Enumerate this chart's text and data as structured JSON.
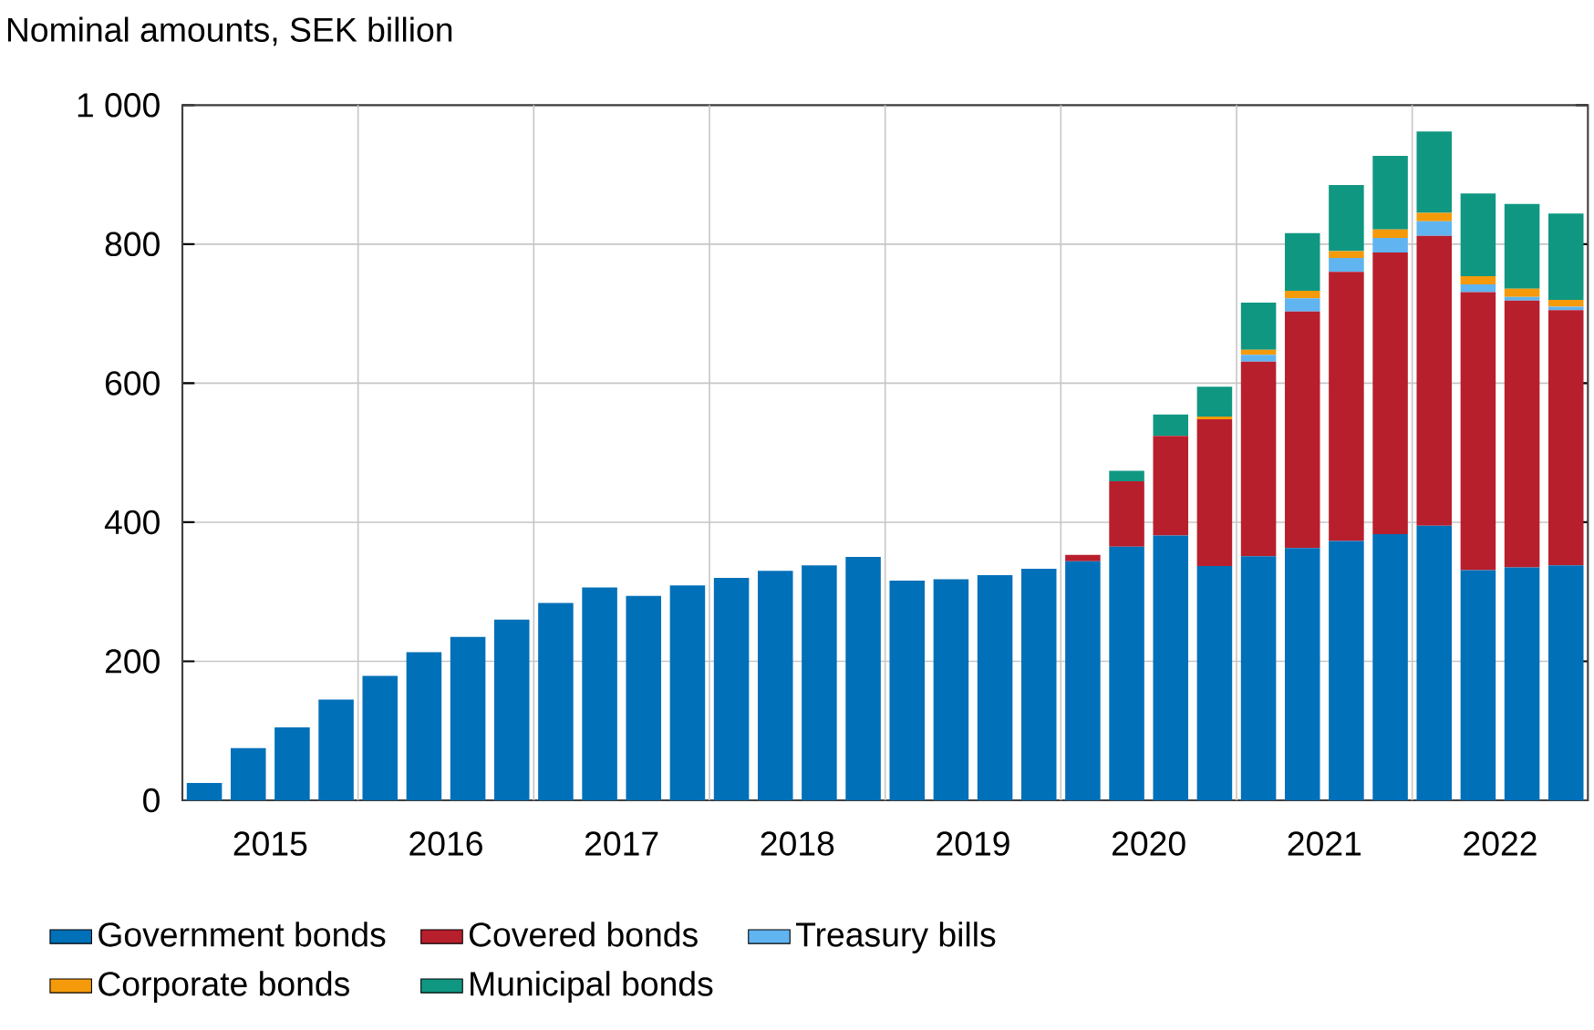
{
  "chart_data": {
    "type": "bar",
    "stacked": true,
    "title": "Nominal amounts, SEK billion",
    "x": [
      2015.125,
      2015.375,
      2015.625,
      2015.875,
      2016.125,
      2016.375,
      2016.625,
      2016.875,
      2017.125,
      2017.375,
      2017.625,
      2017.875,
      2018.125,
      2018.375,
      2018.625,
      2018.875,
      2019.125,
      2019.375,
      2019.625,
      2019.875,
      2020.125,
      2020.375,
      2020.625,
      2020.875,
      2021.125,
      2021.375,
      2021.625,
      2021.875,
      2022.125,
      2022.375,
      2022.625,
      2022.875
    ],
    "series": [
      {
        "name": "Government bonds",
        "color": "#0070b8",
        "values": [
          25,
          75,
          105,
          145,
          179,
          213,
          235,
          260,
          284,
          306,
          294,
          309,
          320,
          330,
          338,
          350,
          316,
          318,
          324,
          333,
          344,
          365,
          381,
          337,
          351,
          363,
          373,
          383,
          395,
          331,
          335,
          338
        ]
      },
      {
        "name": "Covered bonds",
        "color": "#b81f2d",
        "values": [
          null,
          null,
          null,
          null,
          null,
          null,
          null,
          null,
          null,
          null,
          null,
          null,
          null,
          null,
          null,
          null,
          null,
          null,
          null,
          null,
          9,
          94,
          143,
          211,
          280,
          340,
          387,
          405,
          417,
          400,
          384,
          367
        ]
      },
      {
        "name": "Treasury bills",
        "color": "#60b4f0",
        "values": [
          null,
          null,
          null,
          null,
          null,
          null,
          null,
          null,
          null,
          null,
          null,
          null,
          null,
          null,
          null,
          null,
          null,
          null,
          null,
          null,
          null,
          null,
          null,
          null,
          10,
          19,
          20,
          21,
          21,
          11,
          5,
          5
        ]
      },
      {
        "name": "Corporate bonds",
        "color": "#f59a0a",
        "values": [
          null,
          null,
          null,
          null,
          null,
          null,
          null,
          null,
          null,
          null,
          null,
          null,
          null,
          null,
          null,
          null,
          null,
          null,
          null,
          null,
          null,
          null,
          null,
          4,
          7,
          11,
          10,
          12,
          12,
          12,
          12,
          10
        ]
      },
      {
        "name": "Municipal bonds",
        "color": "#109782",
        "values": [
          null,
          null,
          null,
          null,
          null,
          null,
          null,
          null,
          null,
          null,
          null,
          null,
          null,
          null,
          null,
          null,
          null,
          null,
          null,
          null,
          null,
          15,
          31,
          43,
          68,
          83,
          95,
          106,
          117,
          119,
          122,
          124
        ]
      }
    ],
    "xlim": [
      2015,
      2023
    ],
    "xticks": [
      {
        "value": 2015.5,
        "label": "2015"
      },
      {
        "value": 2016,
        "label": null
      },
      {
        "value": 2016.5,
        "label": "2016"
      },
      {
        "value": 2017,
        "label": null
      },
      {
        "value": 2017.5,
        "label": "2017"
      },
      {
        "value": 2018,
        "label": null
      },
      {
        "value": 2018.5,
        "label": "2018"
      },
      {
        "value": 2019,
        "label": null
      },
      {
        "value": 2019.5,
        "label": "2019"
      },
      {
        "value": 2020,
        "label": null
      },
      {
        "value": 2020.5,
        "label": "2020"
      },
      {
        "value": 2021,
        "label": null
      },
      {
        "value": 2021.5,
        "label": "2021"
      },
      {
        "value": 2022,
        "label": null
      },
      {
        "value": 2022.5,
        "label": "2022"
      }
    ],
    "ylim": [
      0,
      1000
    ],
    "yticks": [
      0,
      200,
      400,
      600,
      800,
      {
        "value": 1000,
        "label": "1 000"
      }
    ],
    "grid": true,
    "legend": "bottom"
  }
}
